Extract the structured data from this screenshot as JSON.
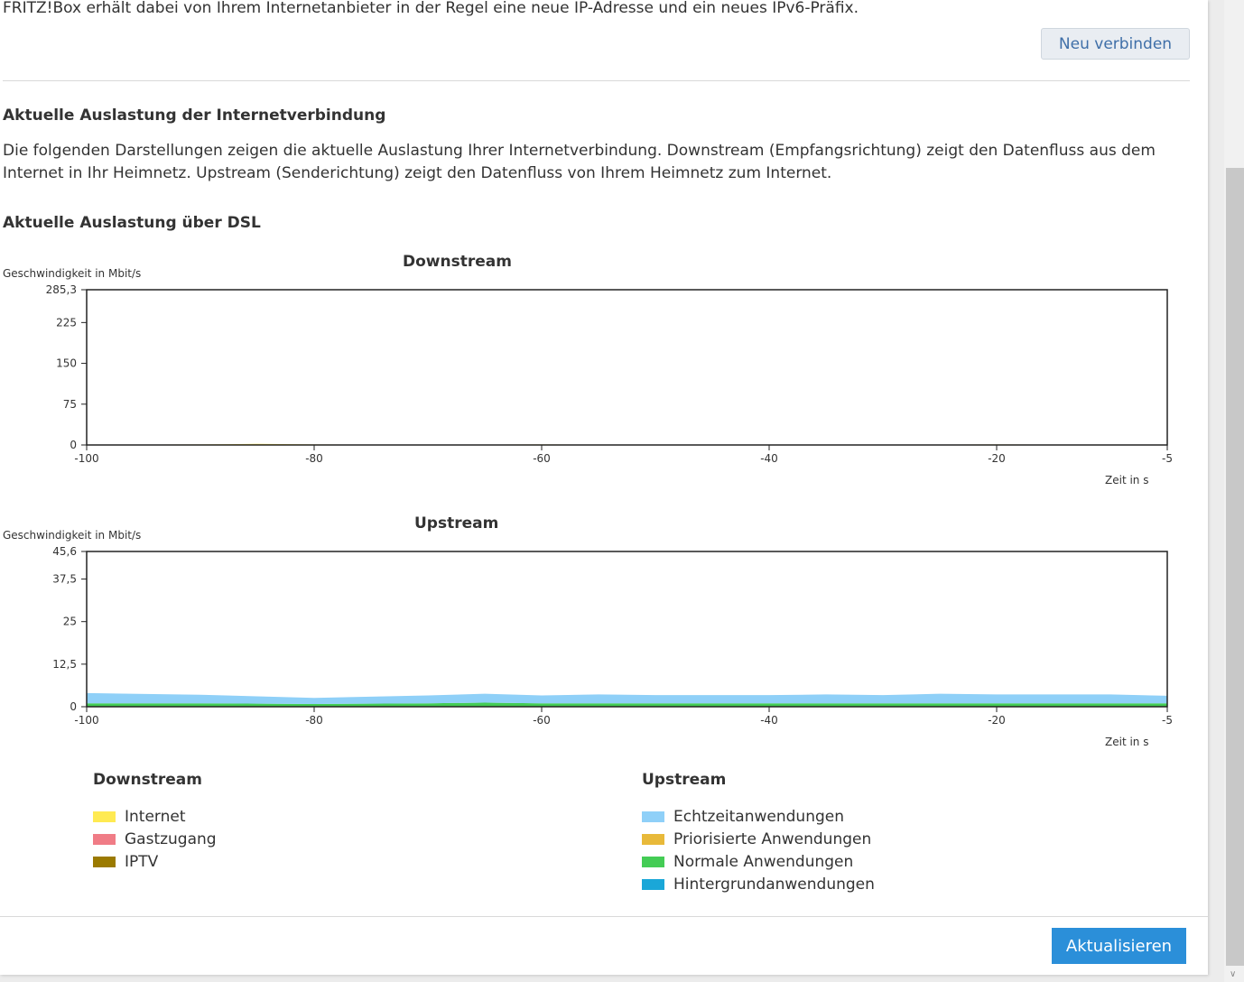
{
  "intro_text": "FRITZ!Box erhält dabei von Ihrem Internetanbieter in der Regel eine neue IP-Adresse und ein neues IPv6-Präfix.",
  "reconnect_button": "Neu verbinden",
  "section_title": "Aktuelle Auslastung der Internetverbindung",
  "section_text": "Die folgenden Darstellungen zeigen die aktuelle Auslastung Ihrer Internetverbindung. Downstream (Empfangsrichtung) zeigt den Datenfluss aus dem Internet in Ihr Heimnetz. Upstream (Senderichtung) zeigt den Datenfluss von Ihrem Heimnetz zum Internet.",
  "dsl_title": "Aktuelle Auslastung über DSL",
  "refresh_button": "Aktualisieren",
  "colors": {
    "internet": "#ffea52",
    "gastzugang": "#f07c86",
    "iptv": "#9b7a00",
    "echtzeit": "#8fd0f8",
    "priorisiert": "#e8b93a",
    "normal": "#44cc55",
    "hintergrund": "#1aa7d8",
    "primary_button": "#2b8fd9"
  },
  "legend": {
    "downstream_title": "Downstream",
    "downstream_items": [
      "Internet",
      "Gastzugang",
      "IPTV"
    ],
    "upstream_title": "Upstream",
    "upstream_items": [
      "Echtzeitanwendungen",
      "Priorisierte Anwendungen",
      "Normale Anwendungen",
      "Hintergrundanwendungen"
    ]
  },
  "chart_data": [
    {
      "type": "area",
      "title": "Downstream",
      "ylabel": "Geschwindigkeit in Mbit/s",
      "xlabel": "Zeit in s",
      "ylim": [
        0,
        285.3
      ],
      "xlim": [
        -100,
        -5
      ],
      "yticks": [
        "285,3",
        "225",
        "150",
        "75",
        "0"
      ],
      "xticks": [
        "-100",
        "-80",
        "-60",
        "-40",
        "-20",
        "-5"
      ],
      "x": [
        -100,
        -90,
        -85,
        -80,
        -70,
        -60,
        -50,
        -40,
        -30,
        -20,
        -10,
        -5
      ],
      "series": [
        {
          "name": "Internet",
          "values": [
            0.5,
            1.0,
            2.0,
            1.0,
            0.5,
            1.0,
            0.5,
            0.5,
            0.5,
            1.0,
            0.5,
            0.5
          ]
        }
      ]
    },
    {
      "type": "area",
      "title": "Upstream",
      "ylabel": "Geschwindigkeit in Mbit/s",
      "xlabel": "Zeit in s",
      "ylim": [
        0,
        45.6
      ],
      "xlim": [
        -100,
        -5
      ],
      "yticks": [
        "45,6",
        "37,5",
        "25",
        "12,5",
        "0"
      ],
      "xticks": [
        "-100",
        "-80",
        "-60",
        "-40",
        "-20",
        "-5"
      ],
      "x": [
        -100,
        -90,
        -80,
        -70,
        -65,
        -60,
        -55,
        -50,
        -40,
        -35,
        -30,
        -25,
        -20,
        -10,
        -5
      ],
      "series": [
        {
          "name": "Normale Anwendungen",
          "values": [
            1.0,
            1.0,
            0.8,
            1.0,
            1.2,
            1.0,
            1.0,
            1.0,
            1.0,
            1.0,
            1.0,
            1.0,
            1.0,
            1.0,
            1.0
          ]
        },
        {
          "name": "Echtzeitanwendungen",
          "values": [
            3.0,
            2.5,
            1.8,
            2.3,
            2.6,
            2.3,
            2.6,
            2.4,
            2.4,
            2.6,
            2.4,
            2.8,
            2.6,
            2.6,
            2.2
          ]
        }
      ]
    }
  ]
}
